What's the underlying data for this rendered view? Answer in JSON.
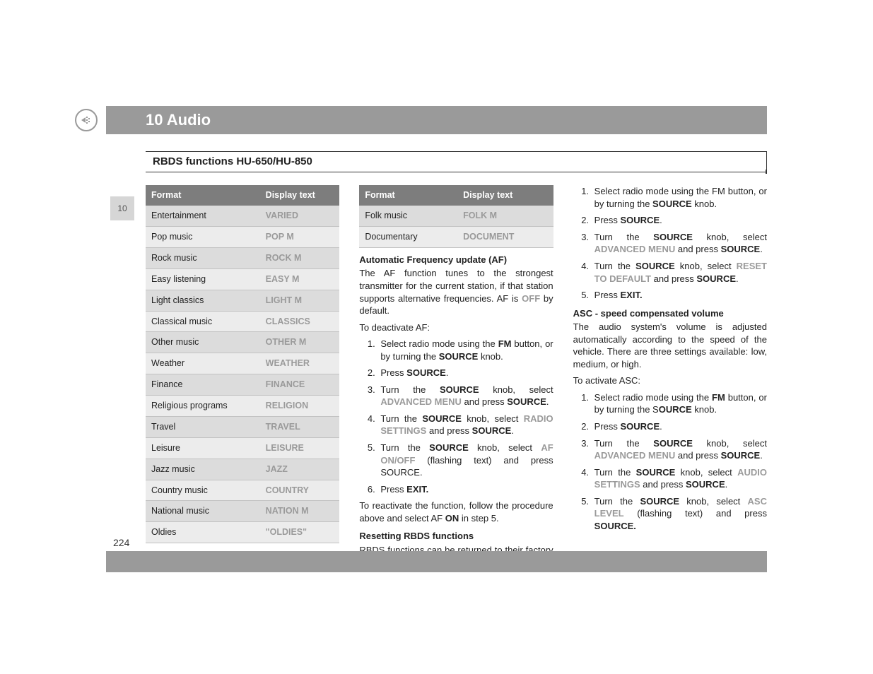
{
  "tab_number": "10",
  "chapter_title": "10 Audio",
  "section_title": "RBDS functions HU-650/HU-850",
  "page_number": "224",
  "table_headers": {
    "format": "Format",
    "display": "Display text"
  },
  "format_table_left": [
    {
      "format": "Entertainment",
      "display": "VARIED"
    },
    {
      "format": "Pop music",
      "display": "POP M"
    },
    {
      "format": "Rock music",
      "display": "ROCK M"
    },
    {
      "format": "Easy listening",
      "display": "EASY M"
    },
    {
      "format": "Light classics",
      "display": "LIGHT M"
    },
    {
      "format": "Classical music",
      "display": "CLASSICS"
    },
    {
      "format": "Other music",
      "display": "OTHER M"
    },
    {
      "format": "Weather",
      "display": "WEATHER"
    },
    {
      "format": "Finance",
      "display": "FINANCE"
    },
    {
      "format": "Religious programs",
      "display": "RELIGION"
    },
    {
      "format": "Travel",
      "display": "TRAVEL"
    },
    {
      "format": "Leisure",
      "display": "LEISURE"
    },
    {
      "format": "Jazz music",
      "display": "JAZZ"
    },
    {
      "format": "Country music",
      "display": "COUNTRY"
    },
    {
      "format": "National music",
      "display": "NATION M"
    },
    {
      "format": "Oldies",
      "display": "\"OLDIES\""
    }
  ],
  "format_table_mid": [
    {
      "format": "Folk music",
      "display": "FOLK M"
    },
    {
      "format": "Documentary",
      "display": "DOCUMENT"
    }
  ],
  "af": {
    "heading": "Automatic Frequency update (AF)",
    "p1a": "The AF function tunes to the strongest transmitter for the current station, if that station supports alternative frequencies. AF is ",
    "p1_off": "OFF",
    "p1b": " by default.",
    "p2": "To deactivate AF:",
    "steps": {
      "s1a": "Select radio mode using the ",
      "s1_fm": "FM",
      "s1b": " button, or by turning the ",
      "s1_src": "SOURCE",
      "s1c": " knob.",
      "s2a": "Press ",
      "s2_src": "SOURCE",
      "s2b": ".",
      "s3a": "Turn the ",
      "s3_src": "SOURCE",
      "s3b": " knob, select ",
      "s3_adv": "ADVANCED MENU",
      "s3c": " and press ",
      "s3_src2": "SOURCE",
      "s3d": ".",
      "s4a": "Turn the ",
      "s4_src": "SOURCE",
      "s4b": " knob, select ",
      "s4_radio": "RADIO SETTINGS",
      "s4c": " and press ",
      "s4_src2": "SOURCE",
      "s4d": ".",
      "s5a": "Turn the ",
      "s5_src": "SOURCE",
      "s5b": " knob, select ",
      "s5_af": "AF ON/OFF",
      "s5c": " (flashing text) and press SOURCE.",
      "s6a": "Press ",
      "s6_exit": "EXIT."
    },
    "p3a": "To reactivate the function, follow the procedure above and select AF ",
    "p3_on": "ON",
    "p3b": " in step 5."
  },
  "reset": {
    "heading": "Resetting RBDS functions",
    "p1": "RBDS functions can be returned to their factory settings as follows:",
    "steps": {
      "s1a": "Select radio mode using the FM button, or by turning the ",
      "s1_src": "SOURCE",
      "s1b": " knob.",
      "s2a": "Press ",
      "s2_src": "SOURCE",
      "s2b": ".",
      "s3a": "Turn the ",
      "s3_src": "SOURCE",
      "s3b": " knob, select ",
      "s3_adv": "ADVANCED MENU",
      "s3c": " and press ",
      "s3_src2": "SOURCE",
      "s3d": ".",
      "s4a": "Turn the ",
      "s4_src": "SOURCE",
      "s4b": " knob, select ",
      "s4_reset": "RESET TO DEFAULT",
      "s4c": " and press ",
      "s4_src2": "SOURCE",
      "s4d": ".",
      "s5a": "Press ",
      "s5_exit": "EXIT."
    }
  },
  "asc": {
    "heading": "ASC - speed compensated volume",
    "p1": "The audio system's volume is adjusted automatically according to the speed of the vehicle. There are three settings available: low, medium, or high.",
    "p2": "To activate ASC:",
    "steps": {
      "s1a": "Select radio mode using the ",
      "s1_fm": "FM",
      "s1b": " button, or by turning the S",
      "s1_src": "OURCE",
      "s1c": " knob.",
      "s2a": "Press ",
      "s2_src": "SOURCE",
      "s2b": ".",
      "s3a": "Turn the ",
      "s3_src": "SOURCE",
      "s3b": " knob, select ",
      "s3_adv": "ADVANCED MENU",
      "s3c": " and press ",
      "s3_src2": "SOURCE",
      "s3d": ".",
      "s4a": "Turn the ",
      "s4_src": "SOURCE",
      "s4b": " knob, select ",
      "s4_audio": "AUDIO SETTINGS",
      "s4c": " and press ",
      "s4_src2": "SOURCE",
      "s4d": ".",
      "s5a": "Turn the ",
      "s5_src": "SOURCE",
      "s5b": " knob, select ",
      "s5_asc": "ASC LEVEL",
      "s5c": " (flashing text) and press ",
      "s5_src2": "SOURCE."
    }
  }
}
